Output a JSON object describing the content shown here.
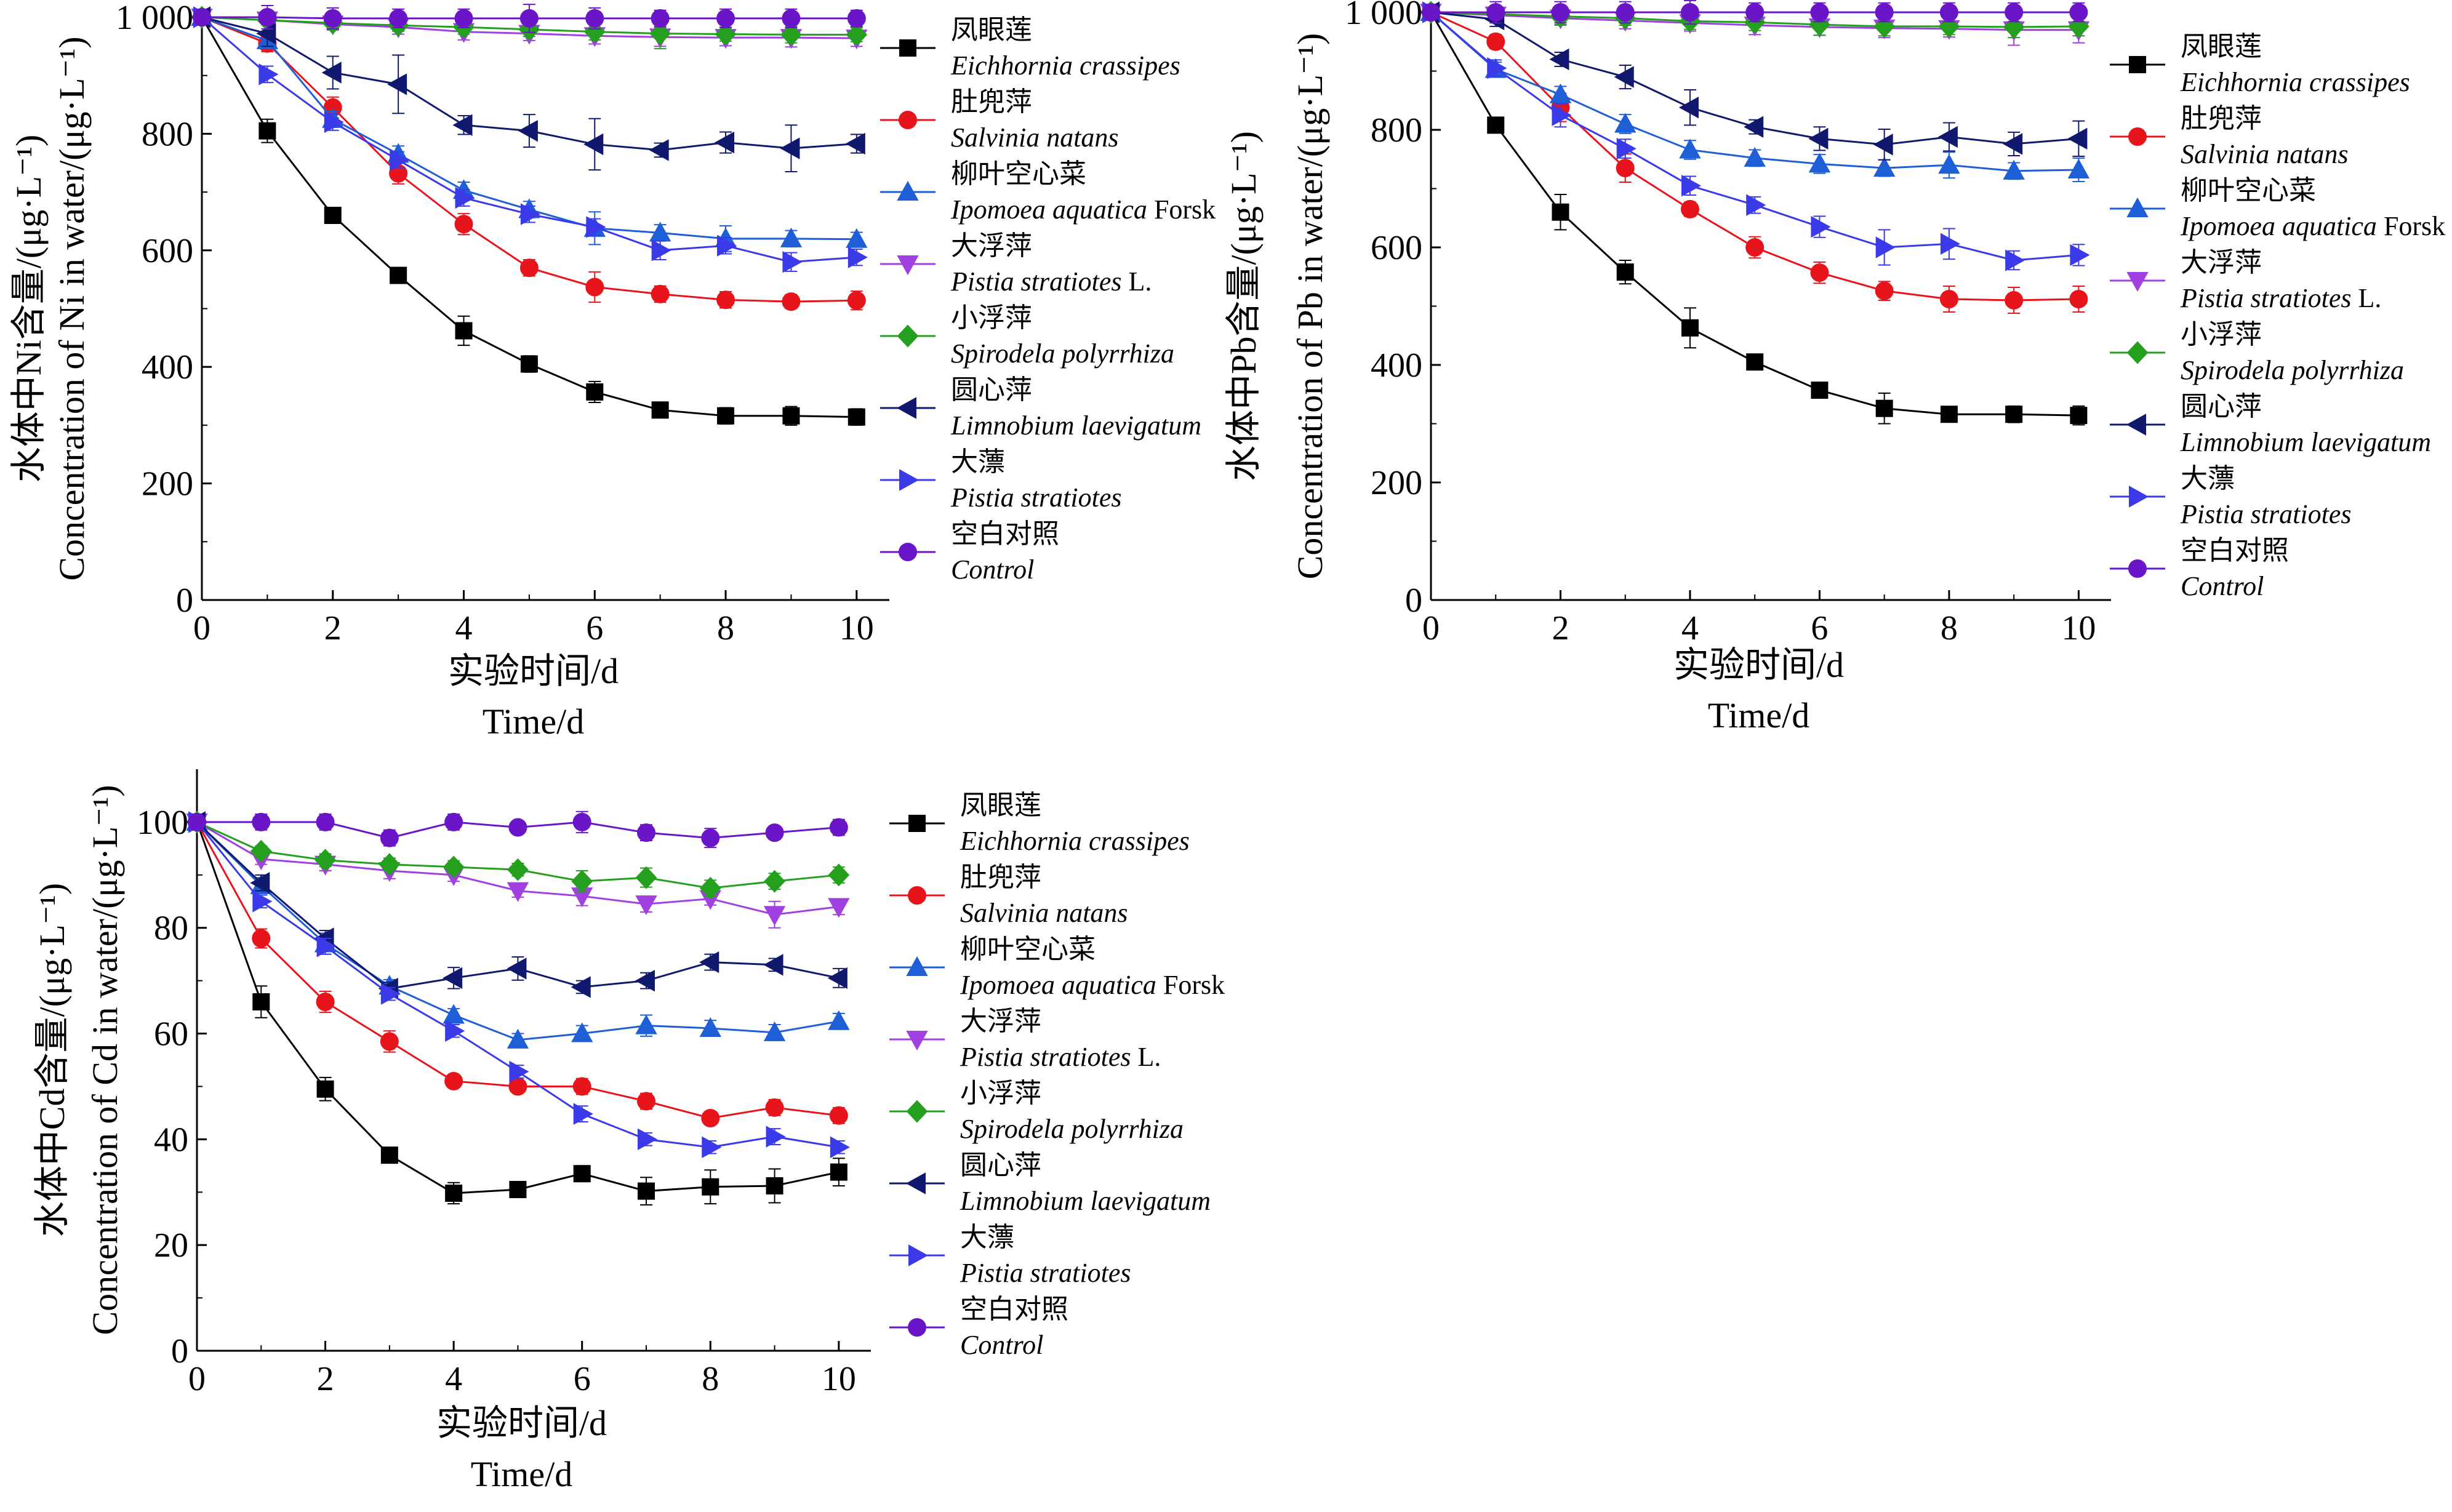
{
  "chart_data": [
    {
      "type": "line",
      "metal": "Ni",
      "ylabel_cn": "水体中Ni含量/(μg·L⁻¹)",
      "ylabel_en": "Concentration of Ni in water/(μg·L⁻¹)",
      "xlabel_cn": "实验时间/d",
      "xlabel_en": "Time/d",
      "xlim": [
        0,
        10.5
      ],
      "ylim": [
        0,
        1000
      ],
      "xticks": [
        "0",
        "2",
        "4",
        "6",
        "8",
        "10"
      ],
      "xtick_values": [
        0,
        2,
        4,
        6,
        8,
        10
      ],
      "yticks": [
        "0",
        "200",
        "400",
        "600",
        "800",
        "1 000"
      ],
      "ytick_values": [
        0,
        200,
        400,
        600,
        800,
        1000
      ],
      "legend_position": "right",
      "x": [
        0,
        1,
        2,
        3,
        4,
        5,
        6,
        7,
        8,
        9,
        10
      ],
      "series": [
        {
          "name_cn": "凤眼莲",
          "name_en": "Eichhornia crassipes",
          "name_en_suffix": "",
          "color": "#000000",
          "marker": "square",
          "values": [
            1000,
            805,
            660,
            557,
            462,
            405,
            357,
            326,
            316,
            316,
            314
          ],
          "errors": [
            0,
            20,
            12,
            12,
            25,
            14,
            18,
            8,
            14,
            16,
            14
          ]
        },
        {
          "name_cn": "肚兜萍",
          "name_en": "Salvinia natans",
          "name_en_suffix": "",
          "color": "#e8141c",
          "marker": "circle",
          "values": [
            1000,
            955,
            845,
            732,
            645,
            570,
            537,
            525,
            515,
            512,
            514
          ],
          "errors": [
            0,
            14,
            18,
            18,
            18,
            14,
            26,
            14,
            14,
            12,
            16
          ]
        },
        {
          "name_cn": "柳叶空心菜",
          "name_en": "Ipomoea aquatica",
          "name_en_suffix": " Forsk",
          "color": "#1e5ed6",
          "marker": "triangle-up",
          "values": [
            1000,
            960,
            825,
            765,
            703,
            670,
            638,
            630,
            620,
            620,
            619
          ],
          "errors": [
            0,
            14,
            14,
            14,
            14,
            14,
            28,
            14,
            22,
            14,
            12
          ]
        },
        {
          "name_cn": "大浮萍",
          "name_en": "Pistia stratiotes",
          "name_en_suffix": " L.",
          "color": "#a040e0",
          "marker": "triangle-down",
          "values": [
            1000,
            995,
            988,
            983,
            975,
            972,
            968,
            966,
            965,
            965,
            964
          ],
          "errors": [
            0,
            8,
            10,
            12,
            14,
            12,
            14,
            16,
            14,
            16,
            14
          ]
        },
        {
          "name_cn": "小浮萍",
          "name_en": "Spirodela polyrrhiza",
          "name_en_suffix": "",
          "color": "#24a01e",
          "marker": "diamond",
          "values": [
            1000,
            995,
            990,
            986,
            983,
            979,
            975,
            972,
            971,
            970,
            970
          ],
          "errors": [
            0,
            8,
            10,
            10,
            12,
            12,
            14,
            26,
            12,
            14,
            12
          ]
        },
        {
          "name_cn": "圆心萍",
          "name_en": "Limnobium laevigatum",
          "name_en_suffix": "",
          "color": "#10196e",
          "marker": "triangle-left",
          "values": [
            1000,
            972,
            905,
            885,
            815,
            805,
            782,
            772,
            785,
            775,
            783
          ],
          "errors": [
            0,
            22,
            28,
            50,
            16,
            28,
            44,
            12,
            18,
            40,
            16
          ]
        },
        {
          "name_cn": "大薸",
          "name_en": "Pistia stratiotes",
          "name_en_suffix": "",
          "color": "#3a3ae8",
          "marker": "triangle-right",
          "values": [
            1000,
            902,
            820,
            755,
            690,
            662,
            640,
            600,
            608,
            580,
            588
          ],
          "errors": [
            0,
            14,
            14,
            14,
            14,
            14,
            14,
            16,
            14,
            16,
            14
          ]
        },
        {
          "name_cn": "空白对照",
          "name_en": "Control",
          "name_en_suffix": "",
          "color": "#6a16c8",
          "marker": "circle",
          "values": [
            1000,
            1000,
            998,
            998,
            998,
            998,
            998,
            998,
            998,
            998,
            998
          ],
          "errors": [
            0,
            20,
            18,
            16,
            16,
            24,
            18,
            14,
            16,
            16,
            14
          ]
        }
      ]
    },
    {
      "type": "line",
      "metal": "Pb",
      "ylabel_cn": "水体中Pb含量/(μg·L⁻¹)",
      "ylabel_en": "Concentration of Pb in water/(μg·L⁻¹)",
      "xlabel_cn": "实验时间/d",
      "xlabel_en": "Time/d",
      "xlim": [
        0,
        10.5
      ],
      "ylim": [
        0,
        1000
      ],
      "xticks": [
        "0",
        "2",
        "4",
        "6",
        "8",
        "10"
      ],
      "xtick_values": [
        0,
        2,
        4,
        6,
        8,
        10
      ],
      "yticks": [
        "0",
        "200",
        "400",
        "600",
        "800",
        "1 000"
      ],
      "ytick_values": [
        0,
        200,
        400,
        600,
        800,
        1000
      ],
      "legend_position": "right",
      "x": [
        0,
        1,
        2,
        3,
        4,
        5,
        6,
        7,
        8,
        9,
        10
      ],
      "series": [
        {
          "name_cn": "凤眼莲",
          "name_en": "Eichhornia crassipes",
          "name_en_suffix": "",
          "color": "#000000",
          "marker": "square",
          "values": [
            1000,
            808,
            660,
            558,
            463,
            405,
            357,
            326,
            316,
            316,
            314
          ],
          "errors": [
            0,
            12,
            30,
            20,
            34,
            12,
            8,
            26,
            12,
            14,
            16
          ]
        },
        {
          "name_cn": "肚兜萍",
          "name_en": "Salvinia natans",
          "name_en_suffix": "",
          "color": "#e8141c",
          "marker": "circle",
          "values": [
            1000,
            950,
            838,
            735,
            665,
            600,
            557,
            526,
            512,
            510,
            512
          ],
          "errors": [
            0,
            12,
            24,
            24,
            12,
            18,
            18,
            16,
            22,
            22,
            22
          ]
        },
        {
          "name_cn": "柳叶空心菜",
          "name_en": "Ipomoea aquatica",
          "name_en_suffix": " Forsk",
          "color": "#1e5ed6",
          "marker": "triangle-up",
          "values": [
            1000,
            903,
            860,
            810,
            766,
            752,
            742,
            735,
            740,
            730,
            732
          ],
          "errors": [
            0,
            12,
            14,
            16,
            16,
            14,
            16,
            14,
            22,
            14,
            20
          ]
        },
        {
          "name_cn": "大浮萍",
          "name_en": "Pistia stratiotes",
          "name_en_suffix": " L.",
          "color": "#a040e0",
          "marker": "triangle-down",
          "values": [
            1000,
            995,
            990,
            986,
            982,
            978,
            975,
            973,
            972,
            970,
            970
          ],
          "errors": [
            0,
            10,
            12,
            14,
            14,
            16,
            14,
            16,
            14,
            26,
            22
          ]
        },
        {
          "name_cn": "小浮萍",
          "name_en": "Spirodela polyrrhiza",
          "name_en_suffix": "",
          "color": "#24a01e",
          "marker": "diamond",
          "values": [
            1000,
            997,
            993,
            990,
            985,
            983,
            979,
            976,
            976,
            975,
            976
          ],
          "errors": [
            0,
            10,
            14,
            12,
            14,
            14,
            18,
            16,
            14,
            18,
            16
          ]
        },
        {
          "name_cn": "圆心萍",
          "name_en": "Limnobium laevigatum",
          "name_en_suffix": "",
          "color": "#10196e",
          "marker": "triangle-left",
          "values": [
            1000,
            988,
            920,
            890,
            838,
            805,
            785,
            775,
            788,
            776,
            785
          ],
          "errors": [
            0,
            12,
            12,
            20,
            30,
            12,
            20,
            26,
            24,
            20,
            30
          ]
        },
        {
          "name_cn": "大薸",
          "name_en": "Pistia stratiotes",
          "name_en_suffix": "",
          "color": "#3a3ae8",
          "marker": "triangle-right",
          "values": [
            1000,
            905,
            825,
            768,
            705,
            672,
            635,
            600,
            606,
            578,
            587
          ],
          "errors": [
            0,
            14,
            20,
            16,
            16,
            14,
            18,
            30,
            26,
            16,
            18
          ]
        },
        {
          "name_cn": "空白对照",
          "name_en": "Control",
          "name_en_suffix": "",
          "color": "#6a16c8",
          "marker": "circle",
          "values": [
            1000,
            1000,
            1000,
            1000,
            1000,
            1000,
            1000,
            1000,
            1000,
            1000,
            1000
          ],
          "errors": [
            0,
            18,
            18,
            18,
            20,
            16,
            16,
            16,
            16,
            16,
            16
          ]
        }
      ]
    },
    {
      "type": "line",
      "metal": "Cd",
      "ylabel_cn": "水体中Cd含量/(μg·L⁻¹)",
      "ylabel_en": "Concentration of Cd in water/(μg·L⁻¹)",
      "xlabel_cn": "实验时间/d",
      "xlabel_en": "Time/d",
      "xlim": [
        0,
        10.5
      ],
      "ylim": [
        0,
        110
      ],
      "xticks": [
        "0",
        "2",
        "4",
        "6",
        "8",
        "10"
      ],
      "xtick_values": [
        0,
        2,
        4,
        6,
        8,
        10
      ],
      "yticks": [
        "0",
        "20",
        "40",
        "60",
        "80",
        "100"
      ],
      "ytick_values": [
        0,
        20,
        40,
        60,
        80,
        100
      ],
      "legend_position": "right",
      "x": [
        0,
        1,
        2,
        3,
        4,
        5,
        6,
        7,
        8,
        9,
        10
      ],
      "series": [
        {
          "name_cn": "凤眼莲",
          "name_en": "Eichhornia crassipes",
          "name_en_suffix": "",
          "color": "#000000",
          "marker": "square",
          "values": [
            100,
            66,
            49.5,
            37,
            29.8,
            30.5,
            33.5,
            30.2,
            31,
            31.2,
            33.8
          ],
          "errors": [
            0,
            3,
            2.2,
            1.2,
            2,
            1.5,
            1.5,
            2.6,
            3.2,
            3.2,
            2.6
          ]
        },
        {
          "name_cn": "肚兜萍",
          "name_en": "Salvinia natans",
          "name_en_suffix": "",
          "color": "#e8141c",
          "marker": "circle",
          "values": [
            100,
            78,
            66,
            58.5,
            51,
            50,
            50,
            47.2,
            44,
            46,
            44.5
          ],
          "errors": [
            0,
            1.8,
            2,
            2,
            1,
            1.2,
            1.5,
            1.5,
            1.2,
            1.5,
            1.5
          ]
        },
        {
          "name_cn": "柳叶空心菜",
          "name_en": "Ipomoea aquatica",
          "name_en_suffix": " Forsk",
          "color": "#1e5ed6",
          "marker": "triangle-up",
          "values": [
            100,
            88,
            77,
            69,
            63.5,
            58.8,
            60,
            61.5,
            61,
            60.2,
            62.3
          ],
          "errors": [
            0,
            1.5,
            2,
            1.2,
            1.2,
            1.2,
            1.5,
            2,
            1.5,
            1.5,
            1.5
          ]
        },
        {
          "name_cn": "大浮萍",
          "name_en": "Pistia stratiotes",
          "name_en_suffix": " L.",
          "color": "#a040e0",
          "marker": "triangle-down",
          "values": [
            100,
            93,
            92,
            90.8,
            90,
            87,
            86,
            84.5,
            85.5,
            82.5,
            84
          ],
          "errors": [
            0,
            1,
            1.2,
            1.5,
            1.2,
            1.2,
            1.8,
            1.5,
            1.2,
            2.5,
            1.5
          ]
        },
        {
          "name_cn": "小浮萍",
          "name_en": "Spirodela polyrrhiza",
          "name_en_suffix": "",
          "color": "#24a01e",
          "marker": "diamond",
          "values": [
            100,
            94.5,
            92.8,
            92,
            91.5,
            91,
            88.8,
            89.5,
            87.5,
            88.8,
            90
          ],
          "errors": [
            0,
            1,
            1.2,
            1.2,
            1.2,
            1.2,
            2,
            1.8,
            1.5,
            1.5,
            1.5
          ]
        },
        {
          "name_cn": "圆心萍",
          "name_en": "Limnobium laevigatum",
          "name_en_suffix": "",
          "color": "#10196e",
          "marker": "triangle-left",
          "values": [
            100,
            88.5,
            78,
            68.5,
            70.5,
            72.3,
            68.8,
            70,
            73.5,
            73,
            70.5
          ],
          "errors": [
            0,
            1.5,
            1.5,
            1.2,
            2,
            2.2,
            1.2,
            1.5,
            1.5,
            1.2,
            1.8
          ]
        },
        {
          "name_cn": "大薸",
          "name_en": "Pistia stratiotes",
          "name_en_suffix": "",
          "color": "#3a3ae8",
          "marker": "triangle-right",
          "values": [
            100,
            85,
            76.5,
            67.5,
            60.5,
            52.8,
            44.8,
            40,
            38.5,
            40.5,
            38.5
          ],
          "errors": [
            0,
            1.2,
            1.5,
            1.2,
            1.2,
            1.2,
            1.5,
            1.2,
            1.2,
            1.5,
            1.2
          ]
        },
        {
          "name_cn": "空白对照",
          "name_en": "Control",
          "name_en_suffix": "",
          "color": "#6a16c8",
          "marker": "circle",
          "values": [
            100,
            100,
            100,
            97,
            100,
            99,
            100,
            98,
            97,
            98,
            99
          ],
          "errors": [
            0,
            1.5,
            1.5,
            1.5,
            1.5,
            1.2,
            2,
            1.5,
            1.8,
            1.2,
            1.5
          ]
        }
      ]
    }
  ]
}
